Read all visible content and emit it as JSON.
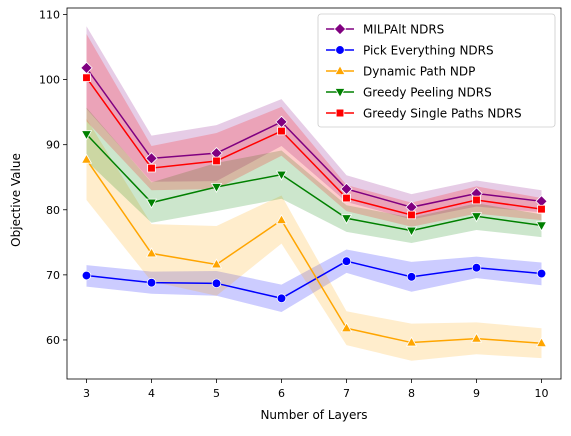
{
  "chart_data": {
    "type": "line",
    "xlabel": "Number of Layers",
    "ylabel": "Objective Value",
    "xlim": [
      2.7,
      10.3
    ],
    "ylim": [
      54,
      111
    ],
    "x": [
      3,
      4,
      5,
      6,
      7,
      8,
      9,
      10
    ],
    "x_ticks": [
      3,
      4,
      5,
      6,
      7,
      8,
      9,
      10
    ],
    "y_ticks": [
      60,
      70,
      80,
      90,
      100,
      110
    ],
    "grid": false,
    "legend_position": "top-right",
    "series": [
      {
        "name": "MILPAlt NDRS",
        "color": "#800080",
        "marker": "diamond",
        "values": [
          101.8,
          87.9,
          88.7,
          93.5,
          83.2,
          80.4,
          82.5,
          81.3
        ],
        "lower": [
          95.5,
          84.3,
          84.4,
          89.8,
          81.2,
          78.5,
          80.5,
          79.6
        ],
        "upper": [
          108.2,
          91.4,
          93.0,
          97.0,
          85.3,
          82.4,
          84.5,
          83.0
        ]
      },
      {
        "name": "Pick Everything NDRS",
        "color": "#0000ff",
        "marker": "circle",
        "values": [
          69.9,
          68.8,
          68.7,
          66.4,
          72.1,
          69.7,
          71.1,
          70.2
        ],
        "lower": [
          68.2,
          67.1,
          66.8,
          64.3,
          70.3,
          67.4,
          69.5,
          68.4
        ],
        "upper": [
          71.5,
          70.5,
          70.6,
          68.5,
          73.9,
          72.0,
          72.8,
          71.9
        ]
      },
      {
        "name": "Dynamic Path NDP",
        "color": "#ffa500",
        "marker": "triangle-up",
        "values": [
          87.7,
          73.3,
          71.6,
          78.4,
          61.8,
          59.6,
          60.2,
          59.5
        ],
        "lower": [
          81.5,
          69.0,
          66.8,
          74.8,
          59.2,
          56.8,
          57.8,
          57.2
        ],
        "upper": [
          94.0,
          77.8,
          77.5,
          82.2,
          64.4,
          62.5,
          62.7,
          61.8
        ]
      },
      {
        "name": "Greedy Peeling NDRS",
        "color": "#008000",
        "marker": "triangle-down",
        "values": [
          91.6,
          81.1,
          83.5,
          85.4,
          78.7,
          76.8,
          79.0,
          77.6
        ],
        "lower": [
          87.5,
          78.0,
          79.8,
          81.7,
          76.6,
          74.9,
          76.9,
          75.8
        ],
        "upper": [
          95.7,
          84.2,
          87.2,
          89.1,
          80.7,
          78.8,
          81.0,
          79.3
        ]
      },
      {
        "name": "Greedy Single Paths NDRS",
        "color": "#ff0000",
        "marker": "square",
        "values": [
          100.3,
          86.4,
          87.5,
          92.1,
          81.8,
          79.2,
          81.5,
          80.1
        ],
        "lower": [
          93.6,
          83.0,
          83.2,
          88.3,
          79.8,
          77.4,
          79.4,
          78.4
        ],
        "upper": [
          107.0,
          89.8,
          91.8,
          95.8,
          83.8,
          81.1,
          83.6,
          81.8
        ]
      }
    ]
  }
}
